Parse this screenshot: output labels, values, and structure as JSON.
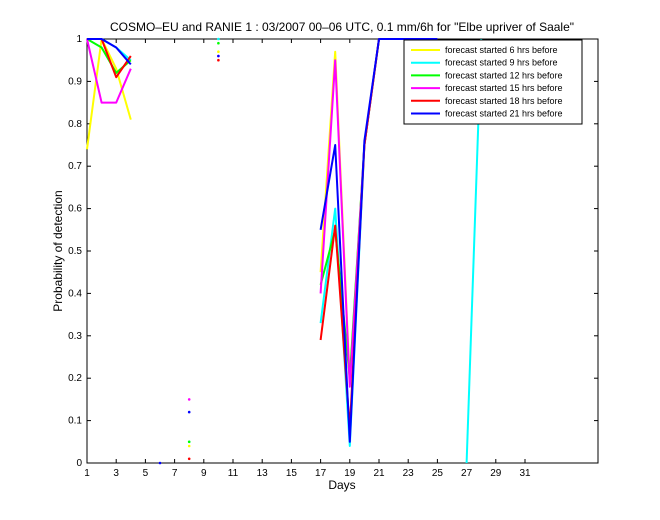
{
  "chart_data": {
    "type": "line",
    "title": "COSMO–EU and RANIE 1 : 03/2007 00–06 UTC, 0.1 mm/6h for \"Elbe upriver of Saale\"",
    "xlabel": "Days",
    "ylabel": "Probability of detection",
    "xlim": [
      1,
      36
    ],
    "ylim": [
      0,
      1
    ],
    "xticks": [
      1,
      3,
      5,
      7,
      9,
      11,
      13,
      15,
      17,
      19,
      21,
      23,
      25,
      27,
      29,
      31
    ],
    "yticks": [
      0,
      0.1,
      0.2,
      0.3,
      0.4,
      0.5,
      0.6,
      0.7,
      0.8,
      0.9,
      1
    ],
    "grid": false,
    "legend_position": "top-right",
    "series": [
      {
        "name": "forecast started 6 hrs before",
        "color": "#ffff00",
        "x": [
          1,
          2,
          3,
          4,
          5,
          6,
          7,
          8,
          9,
          10,
          11,
          12,
          13,
          14,
          15,
          16,
          17,
          18,
          19,
          20,
          21,
          22,
          23,
          24,
          25,
          26,
          27,
          28,
          29,
          30,
          31
        ],
        "y": [
          0.74,
          1,
          0.93,
          0.81,
          null,
          null,
          null,
          0.04,
          null,
          0.97,
          null,
          null,
          null,
          null,
          null,
          null,
          0.45,
          0.97,
          0.19,
          0.75,
          1,
          1,
          1,
          1,
          null,
          null,
          null,
          null,
          null,
          null,
          null
        ]
      },
      {
        "name": "forecast started 9 hrs before",
        "color": "#00ffff",
        "x": [
          1,
          2,
          3,
          4,
          5,
          6,
          7,
          8,
          9,
          10,
          11,
          12,
          13,
          14,
          15,
          16,
          17,
          18,
          19,
          20,
          21,
          22,
          23,
          24,
          25,
          26,
          27,
          28,
          29,
          30,
          31
        ],
        "y": [
          1,
          1,
          0.98,
          0.95,
          null,
          null,
          null,
          0.05,
          null,
          1,
          null,
          null,
          null,
          null,
          null,
          null,
          0.33,
          0.6,
          0.04,
          0.75,
          1,
          1,
          1,
          1,
          null,
          null,
          0,
          1,
          null,
          null,
          null
        ]
      },
      {
        "name": "forecast started 12 hrs before",
        "color": "#00ff00",
        "x": [
          1,
          2,
          3,
          4,
          5,
          6,
          7,
          8,
          9,
          10,
          11,
          12,
          13,
          14,
          15,
          16,
          17,
          18,
          19,
          20,
          21,
          22,
          23,
          24,
          25,
          26,
          27,
          28,
          29,
          30,
          31
        ],
        "y": [
          1,
          0.98,
          0.92,
          0.95,
          null,
          null,
          null,
          0.05,
          null,
          0.99,
          null,
          null,
          null,
          null,
          null,
          null,
          0.42,
          0.55,
          0.2,
          0.75,
          1,
          1,
          1,
          1,
          null,
          null,
          null,
          null,
          null,
          null,
          null
        ]
      },
      {
        "name": "forecast started 15 hrs before",
        "color": "#ff00ff",
        "x": [
          1,
          2,
          3,
          4,
          5,
          6,
          7,
          8,
          9,
          10,
          11,
          12,
          13,
          14,
          15,
          16,
          17,
          18,
          19,
          20,
          21,
          22,
          23,
          24,
          25,
          26,
          27,
          28,
          29,
          30,
          31
        ],
        "y": [
          1,
          0.85,
          0.85,
          0.93,
          null,
          null,
          null,
          0.15,
          null,
          0.96,
          null,
          null,
          null,
          null,
          null,
          null,
          0.4,
          0.95,
          0.18,
          0.75,
          1,
          1,
          1,
          1,
          0.89,
          null,
          null,
          null,
          null,
          null,
          null
        ]
      },
      {
        "name": "forecast started 18 hrs before",
        "color": "#ff0000",
        "x": [
          1,
          2,
          3,
          4,
          5,
          6,
          7,
          8,
          9,
          10,
          11,
          12,
          13,
          14,
          15,
          16,
          17,
          18,
          19,
          20,
          21,
          22,
          23,
          24,
          25,
          26,
          27,
          28,
          29,
          30,
          31
        ],
        "y": [
          1,
          1,
          0.91,
          0.96,
          null,
          null,
          null,
          0.01,
          null,
          0.95,
          null,
          null,
          null,
          null,
          null,
          null,
          0.29,
          0.56,
          0.08,
          0.75,
          1,
          1,
          1,
          0.97,
          1,
          null,
          null,
          null,
          null,
          null,
          null
        ]
      },
      {
        "name": "forecast started 21 hrs before",
        "color": "#0000ff",
        "x": [
          1,
          2,
          3,
          4,
          5,
          6,
          7,
          8,
          9,
          10,
          11,
          12,
          13,
          14,
          15,
          16,
          17,
          18,
          19,
          20,
          21,
          22,
          23,
          24,
          25,
          26,
          27,
          28,
          29,
          30,
          31
        ],
        "y": [
          1,
          1,
          0.98,
          0.94,
          null,
          0,
          null,
          0.12,
          null,
          0.96,
          null,
          null,
          null,
          null,
          null,
          null,
          0.55,
          0.75,
          0.05,
          0.76,
          1,
          1,
          1,
          1,
          1,
          null,
          null,
          null,
          null,
          null,
          null
        ]
      }
    ]
  }
}
